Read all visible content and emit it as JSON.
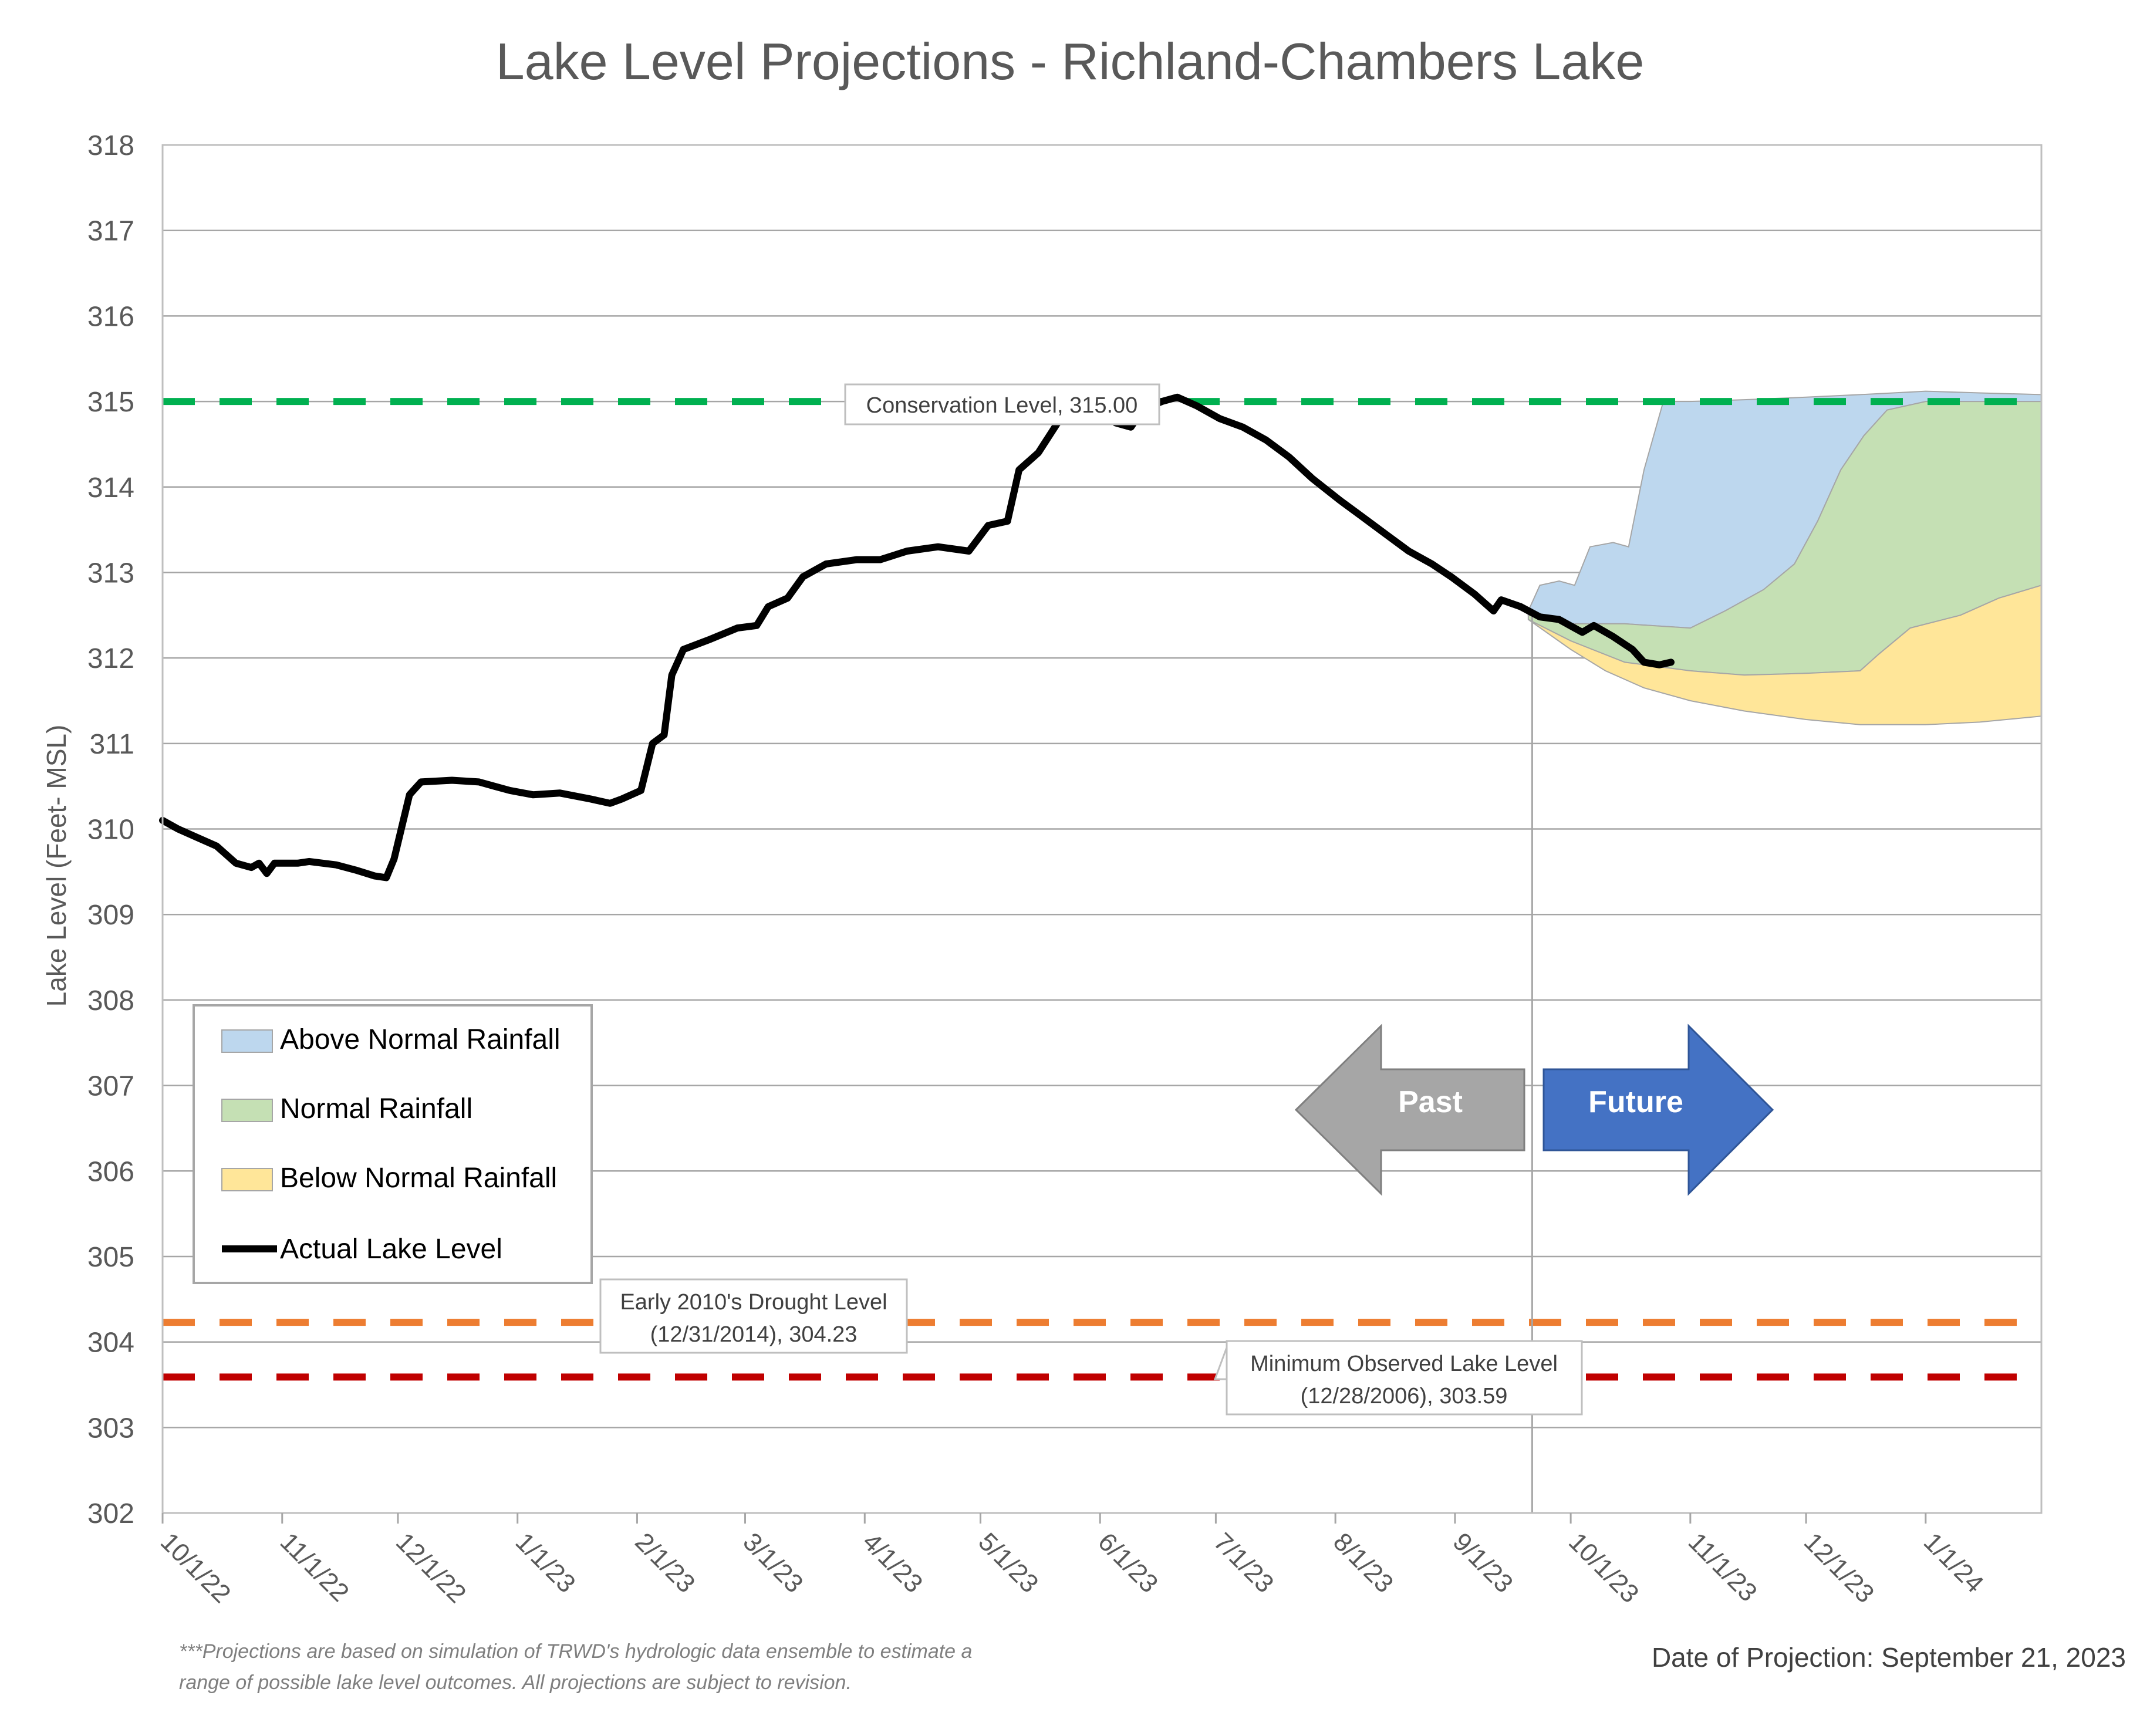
{
  "chart_data": {
    "type": "area",
    "title": "Lake Level Projections - Richland-Chambers Lake",
    "ylabel": "Lake Level (Feet- MSL)",
    "xlabel": "",
    "ylim": [
      302,
      318
    ],
    "yticks": [
      302,
      303,
      304,
      305,
      306,
      307,
      308,
      309,
      310,
      311,
      312,
      313,
      314,
      315,
      316,
      317,
      318
    ],
    "xlim": [
      "2022-10-01",
      "2024-01-31"
    ],
    "xticks": [
      {
        "date": "2022-10-01",
        "label": "10/1/22"
      },
      {
        "date": "2022-11-01",
        "label": "11/1/22"
      },
      {
        "date": "2022-12-01",
        "label": "12/1/22"
      },
      {
        "date": "2023-01-01",
        "label": "1/1/23"
      },
      {
        "date": "2023-02-01",
        "label": "2/1/23"
      },
      {
        "date": "2023-03-01",
        "label": "3/1/23"
      },
      {
        "date": "2023-04-01",
        "label": "4/1/23"
      },
      {
        "date": "2023-05-01",
        "label": "5/1/23"
      },
      {
        "date": "2023-06-01",
        "label": "6/1/23"
      },
      {
        "date": "2023-07-01",
        "label": "7/1/23"
      },
      {
        "date": "2023-08-01",
        "label": "8/1/23"
      },
      {
        "date": "2023-09-01",
        "label": "9/1/23"
      },
      {
        "date": "2023-10-01",
        "label": "10/1/23"
      },
      {
        "date": "2023-11-01",
        "label": "11/1/23"
      },
      {
        "date": "2023-12-01",
        "label": "12/1/23"
      },
      {
        "date": "2024-01-01",
        "label": "1/1/24"
      }
    ],
    "grid": "horizontal",
    "legend_position": "lower-left",
    "projection_date": "2023-09-21",
    "reference_lines": [
      {
        "label": "Conservation Level, 315.00",
        "value": 315.0,
        "color": "#00b050",
        "style": "dashed"
      },
      {
        "label": "Early 2010's Drought Level\n(12/31/2014), 304.23",
        "value": 304.23,
        "color": "#ed7d31",
        "style": "dashed"
      },
      {
        "label": "Minimum Observed Lake Level\n(12/28/2006), 303.59",
        "value": 303.59,
        "color": "#c00000",
        "style": "dashed"
      }
    ],
    "series": [
      {
        "name": "Actual Lake Level",
        "kind": "line",
        "color": "#000000",
        "points": [
          [
            "2022-10-01",
            310.1
          ],
          [
            "2022-10-05",
            310.0
          ],
          [
            "2022-10-10",
            309.9
          ],
          [
            "2022-10-15",
            309.8
          ],
          [
            "2022-10-20",
            309.6
          ],
          [
            "2022-10-24",
            309.55
          ],
          [
            "2022-10-26",
            309.6
          ],
          [
            "2022-10-28",
            309.48
          ],
          [
            "2022-10-30",
            309.6
          ],
          [
            "2022-11-05",
            309.6
          ],
          [
            "2022-11-08",
            309.62
          ],
          [
            "2022-11-15",
            309.58
          ],
          [
            "2022-11-20",
            309.52
          ],
          [
            "2022-11-25",
            309.45
          ],
          [
            "2022-11-28",
            309.43
          ],
          [
            "2022-11-30",
            309.65
          ],
          [
            "2022-12-04",
            310.4
          ],
          [
            "2022-12-07",
            310.55
          ],
          [
            "2022-12-15",
            310.57
          ],
          [
            "2022-12-22",
            310.55
          ],
          [
            "2022-12-26",
            310.5
          ],
          [
            "2022-12-30",
            310.45
          ],
          [
            "2023-01-05",
            310.4
          ],
          [
            "2023-01-12",
            310.42
          ],
          [
            "2023-01-20",
            310.35
          ],
          [
            "2023-01-25",
            310.3
          ],
          [
            "2023-01-28",
            310.35
          ],
          [
            "2023-02-02",
            310.45
          ],
          [
            "2023-02-05",
            311.0
          ],
          [
            "2023-02-08",
            311.1
          ],
          [
            "2023-02-10",
            311.8
          ],
          [
            "2023-02-13",
            312.1
          ],
          [
            "2023-02-20",
            312.22
          ],
          [
            "2023-02-27",
            312.35
          ],
          [
            "2023-03-04",
            312.38
          ],
          [
            "2023-03-07",
            312.6
          ],
          [
            "2023-03-12",
            312.7
          ],
          [
            "2023-03-16",
            312.95
          ],
          [
            "2023-03-22",
            313.1
          ],
          [
            "2023-03-30",
            313.15
          ],
          [
            "2023-04-05",
            313.15
          ],
          [
            "2023-04-12",
            313.25
          ],
          [
            "2023-04-20",
            313.3
          ],
          [
            "2023-04-28",
            313.25
          ],
          [
            "2023-05-03",
            313.55
          ],
          [
            "2023-05-08",
            313.6
          ],
          [
            "2023-05-11",
            314.2
          ],
          [
            "2023-05-16",
            314.4
          ],
          [
            "2023-05-21",
            314.75
          ],
          [
            "2023-05-28",
            314.95
          ],
          [
            "2023-06-02",
            314.9
          ],
          [
            "2023-06-05",
            314.75
          ],
          [
            "2023-06-09",
            314.7
          ],
          [
            "2023-06-12",
            314.9
          ],
          [
            "2023-06-17",
            315.0
          ],
          [
            "2023-06-21",
            315.05
          ],
          [
            "2023-06-26",
            314.95
          ],
          [
            "2023-07-02",
            314.8
          ],
          [
            "2023-07-08",
            314.7
          ],
          [
            "2023-07-14",
            314.55
          ],
          [
            "2023-07-20",
            314.35
          ],
          [
            "2023-07-26",
            314.1
          ],
          [
            "2023-08-02",
            313.85
          ],
          [
            "2023-08-08",
            313.65
          ],
          [
            "2023-08-14",
            313.45
          ],
          [
            "2023-08-20",
            313.25
          ],
          [
            "2023-08-26",
            313.1
          ],
          [
            "2023-08-31",
            312.95
          ],
          [
            "2023-09-06",
            312.75
          ],
          [
            "2023-09-11",
            312.55
          ],
          [
            "2023-09-13",
            312.68
          ],
          [
            "2023-09-18",
            312.6
          ],
          [
            "2023-09-23",
            312.48
          ],
          [
            "2023-09-28",
            312.45
          ],
          [
            "2023-10-04",
            312.3
          ],
          [
            "2023-10-07",
            312.38
          ],
          [
            "2023-10-12",
            312.25
          ],
          [
            "2023-10-17",
            312.1
          ],
          [
            "2023-10-20",
            311.95
          ],
          [
            "2023-10-24",
            311.92
          ],
          [
            "2023-10-27",
            311.95
          ]
        ]
      },
      {
        "name": "Above Normal Rainfall",
        "kind": "band",
        "color": "#bdd7ee",
        "upper": [
          [
            "2023-09-20",
            312.55
          ],
          [
            "2023-09-23",
            312.85
          ],
          [
            "2023-09-28",
            312.9
          ],
          [
            "2023-10-02",
            312.85
          ],
          [
            "2023-10-06",
            313.3
          ],
          [
            "2023-10-12",
            313.35
          ],
          [
            "2023-10-16",
            313.3
          ],
          [
            "2023-10-20",
            314.2
          ],
          [
            "2023-10-25",
            315.0
          ],
          [
            "2023-11-01",
            315.0
          ],
          [
            "2023-11-15",
            315.02
          ],
          [
            "2023-12-01",
            315.05
          ],
          [
            "2023-12-15",
            315.08
          ],
          [
            "2024-01-01",
            315.12
          ],
          [
            "2024-01-15",
            315.1
          ],
          [
            "2024-01-31",
            315.08
          ]
        ],
        "lower": [
          [
            "2023-09-20",
            312.5
          ],
          [
            "2023-10-01",
            312.4
          ],
          [
            "2023-10-15",
            312.4
          ],
          [
            "2023-11-01",
            312.35
          ],
          [
            "2023-11-10",
            312.55
          ],
          [
            "2023-11-20",
            312.8
          ],
          [
            "2023-11-28",
            313.1
          ],
          [
            "2023-12-04",
            313.6
          ],
          [
            "2023-12-10",
            314.2
          ],
          [
            "2023-12-16",
            314.6
          ],
          [
            "2023-12-22",
            314.9
          ],
          [
            "2024-01-01",
            315.0
          ],
          [
            "2024-01-31",
            315.0
          ]
        ]
      },
      {
        "name": "Normal Rainfall",
        "kind": "band",
        "color": "#c5e0b4",
        "upper": [
          [
            "2023-09-20",
            312.5
          ],
          [
            "2023-10-01",
            312.4
          ],
          [
            "2023-10-15",
            312.4
          ],
          [
            "2023-11-01",
            312.35
          ],
          [
            "2023-11-10",
            312.55
          ],
          [
            "2023-11-20",
            312.8
          ],
          [
            "2023-11-28",
            313.1
          ],
          [
            "2023-12-04",
            313.6
          ],
          [
            "2023-12-10",
            314.2
          ],
          [
            "2023-12-16",
            314.6
          ],
          [
            "2023-12-22",
            314.9
          ],
          [
            "2024-01-01",
            315.0
          ],
          [
            "2024-01-31",
            315.0
          ]
        ],
        "lower": [
          [
            "2023-09-20",
            312.45
          ],
          [
            "2023-10-01",
            312.2
          ],
          [
            "2023-10-15",
            311.95
          ],
          [
            "2023-11-01",
            311.85
          ],
          [
            "2023-11-15",
            311.8
          ],
          [
            "2023-12-01",
            311.82
          ],
          [
            "2023-12-15",
            311.85
          ],
          [
            "2023-12-20",
            312.05
          ],
          [
            "2023-12-28",
            312.35
          ],
          [
            "2024-01-10",
            312.5
          ],
          [
            "2024-01-20",
            312.7
          ],
          [
            "2024-01-31",
            312.85
          ]
        ]
      },
      {
        "name": "Below Normal Rainfall",
        "kind": "band",
        "color": "#ffe699",
        "upper": [
          [
            "2023-09-20",
            312.45
          ],
          [
            "2023-10-01",
            312.2
          ],
          [
            "2023-10-15",
            311.95
          ],
          [
            "2023-11-01",
            311.85
          ],
          [
            "2023-11-15",
            311.8
          ],
          [
            "2023-12-01",
            311.82
          ],
          [
            "2023-12-15",
            311.85
          ],
          [
            "2023-12-20",
            312.05
          ],
          [
            "2023-12-28",
            312.35
          ],
          [
            "2024-01-10",
            312.5
          ],
          [
            "2024-01-20",
            312.7
          ],
          [
            "2024-01-31",
            312.85
          ]
        ],
        "lower": [
          [
            "2023-09-20",
            312.45
          ],
          [
            "2023-10-01",
            312.1
          ],
          [
            "2023-10-10",
            311.85
          ],
          [
            "2023-10-20",
            311.65
          ],
          [
            "2023-11-01",
            311.5
          ],
          [
            "2023-11-15",
            311.38
          ],
          [
            "2023-12-01",
            311.28
          ],
          [
            "2023-12-15",
            311.22
          ],
          [
            "2024-01-01",
            311.22
          ],
          [
            "2024-01-15",
            311.25
          ],
          [
            "2024-01-31",
            311.32
          ]
        ]
      }
    ]
  },
  "legend": {
    "items": [
      {
        "label": "Above Normal Rainfall",
        "color": "#bdd7ee"
      },
      {
        "label": "Normal Rainfall",
        "color": "#c5e0b4"
      },
      {
        "label": "Below Normal Rainfall",
        "color": "#ffe699"
      },
      {
        "label": "Actual Lake Level",
        "color": "#000000"
      }
    ]
  },
  "arrows": {
    "past_label": "Past",
    "future_label": "Future",
    "past_color": "#a6a6a6",
    "future_color": "#4472c4"
  },
  "footer": {
    "note_line1": "***Projections are based on simulation of TRWD's hydrologic data ensemble to estimate a",
    "note_line2": "range of possible lake level outcomes.  All projections are subject to revision.",
    "projection_date_text": "Date of Projection: September 21, 2023"
  }
}
